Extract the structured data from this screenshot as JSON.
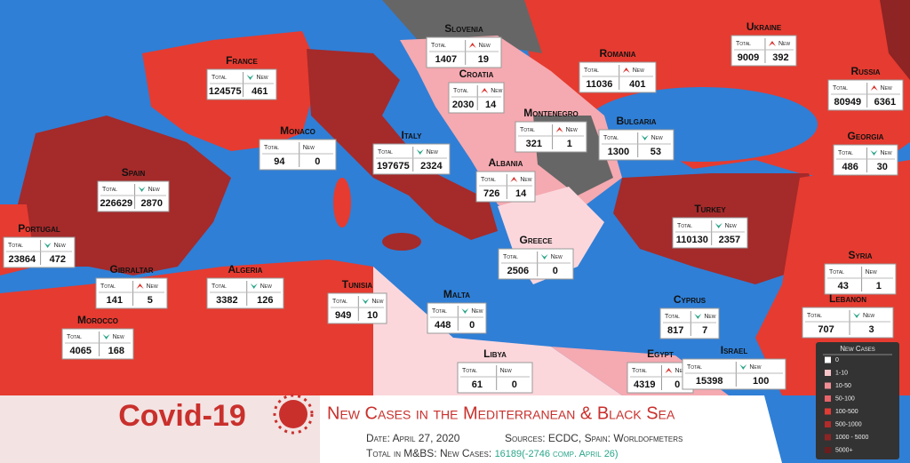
{
  "title": "Covid-19",
  "subtitle": "New Cases in the Mediterranean & Black Sea",
  "date": "Date: April 27, 2020",
  "sources": "Sources: ECDC, Spain: Worldofmeters",
  "total_label": "Total in M&BS: New Cases:",
  "total_new": 16189,
  "change_note": "(-2746 comp. April 26)",
  "box_total": "Total",
  "box_new": "New",
  "legend": {
    "title": "New Cases",
    "items": [
      {
        "label": "0",
        "color": "#ffffff"
      },
      {
        "label": "1-10",
        "color": "#f7c4c9"
      },
      {
        "label": "10-50",
        "color": "#f18e95"
      },
      {
        "label": "50-100",
        "color": "#e9636a"
      },
      {
        "label": "100-500",
        "color": "#e03c35"
      },
      {
        "label": "500-1000",
        "color": "#b32a2a"
      },
      {
        "label": "1000 - 5000",
        "color": "#8e2424"
      },
      {
        "label": "5000+",
        "color": "#6b1d1d"
      }
    ]
  },
  "countries": [
    {
      "name": "France",
      "total": 124575,
      "new": 461,
      "trend": "down"
    },
    {
      "name": "Slovenia",
      "total": 1407,
      "new": 19,
      "trend": "up"
    },
    {
      "name": "Croatia",
      "total": 2030,
      "new": 14,
      "trend": "up"
    },
    {
      "name": "Romania",
      "total": 11036,
      "new": 401,
      "trend": "up"
    },
    {
      "name": "Ukraine",
      "total": 9009,
      "new": 392,
      "trend": "up"
    },
    {
      "name": "Russia",
      "total": 80949,
      "new": 6361,
      "trend": "up"
    },
    {
      "name": "Monaco",
      "total": 94,
      "new": 0,
      "trend": "none"
    },
    {
      "name": "Italy",
      "total": 197675,
      "new": 2324,
      "trend": "down"
    },
    {
      "name": "Montenegro",
      "total": 321,
      "new": 1,
      "trend": "up"
    },
    {
      "name": "Bulgaria",
      "total": 1300,
      "new": 53,
      "trend": "down"
    },
    {
      "name": "Georgia",
      "total": 486,
      "new": 30,
      "trend": "down"
    },
    {
      "name": "Spain",
      "total": 226629,
      "new": 2870,
      "trend": "down"
    },
    {
      "name": "Albania",
      "total": 726,
      "new": 14,
      "trend": "up"
    },
    {
      "name": "Turkey",
      "total": 110130,
      "new": 2357,
      "trend": "down"
    },
    {
      "name": "Portugal",
      "total": 23864,
      "new": 472,
      "trend": "down"
    },
    {
      "name": "Greece",
      "total": 2506,
      "new": 0,
      "trend": "down"
    },
    {
      "name": "Syria",
      "total": 43,
      "new": 1,
      "trend": "none"
    },
    {
      "name": "Gibraltar",
      "total": 141,
      "new": 5,
      "trend": "up"
    },
    {
      "name": "Algeria",
      "total": 3382,
      "new": 126,
      "trend": "down"
    },
    {
      "name": "Tunisia",
      "total": 949,
      "new": 10,
      "trend": "down"
    },
    {
      "name": "Malta",
      "total": 448,
      "new": 0,
      "trend": "down"
    },
    {
      "name": "Cyprus",
      "total": 817,
      "new": 7,
      "trend": "down"
    },
    {
      "name": "Lebanon",
      "total": 707,
      "new": 3,
      "trend": "down"
    },
    {
      "name": "Morocco",
      "total": 4065,
      "new": 168,
      "trend": "down"
    },
    {
      "name": "Libya",
      "total": 61,
      "new": 0,
      "trend": "none"
    },
    {
      "name": "Egypt",
      "total": 4319,
      "new": 0,
      "trend": "up"
    },
    {
      "name": "Israel",
      "total": 15398,
      "new": 100,
      "trend": "down"
    }
  ]
}
